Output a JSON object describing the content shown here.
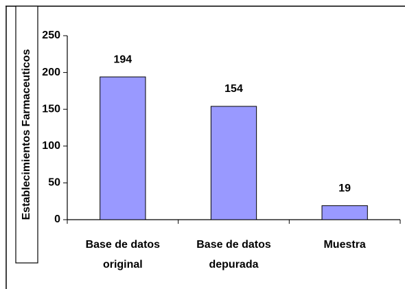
{
  "chart_data": {
    "type": "bar",
    "y_label": "Establecimientos Farmaceuticos",
    "categories": [
      "Base de datos original",
      "Base de datos depurada",
      "Muestra"
    ],
    "values": [
      194,
      154,
      19
    ],
    "color": "#9999ff",
    "ylim": [
      0,
      250
    ],
    "yticks": [
      0,
      50,
      100,
      150,
      200,
      250
    ],
    "grid": false
  }
}
